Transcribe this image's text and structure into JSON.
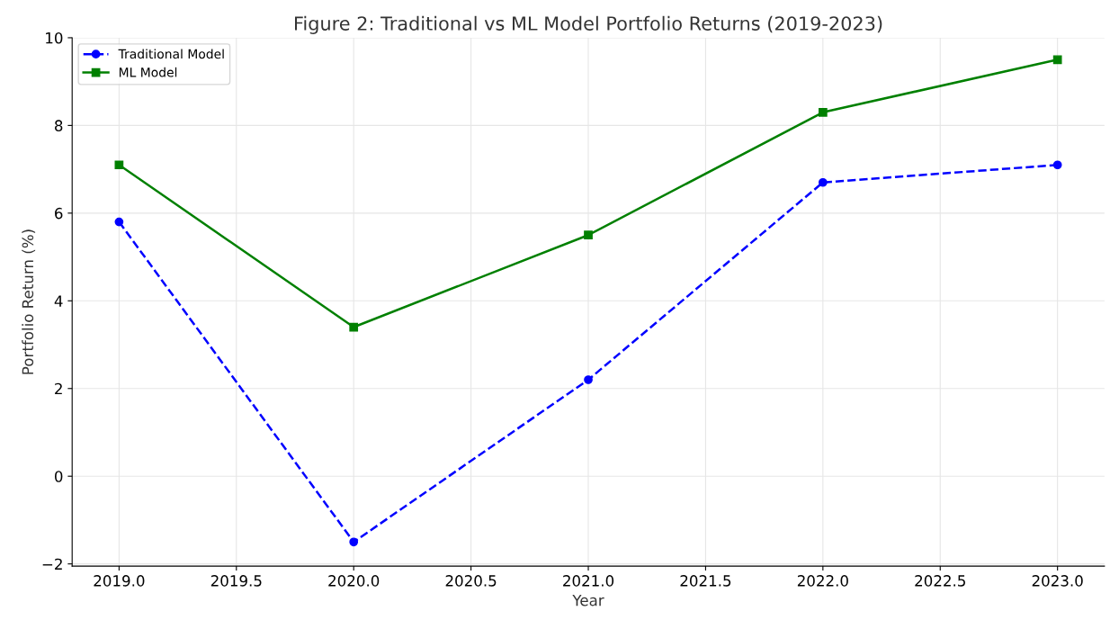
{
  "chart_data": {
    "type": "line",
    "title": "Figure 2: Traditional vs ML Model Portfolio Returns (2019-2023)",
    "xlabel": "Year",
    "ylabel": "Portfolio Return (%)",
    "x": [
      2019,
      2020,
      2021,
      2022,
      2023
    ],
    "series": [
      {
        "name": "Traditional Model",
        "color": "#0000ff",
        "values": [
          5.8,
          -1.5,
          2.2,
          6.7,
          7.1
        ],
        "marker": "circle",
        "line_style": "dashed"
      },
      {
        "name": "ML Model",
        "color": "#008000",
        "values": [
          7.1,
          3.4,
          5.5,
          8.3,
          9.5
        ],
        "marker": "square",
        "line_style": "solid"
      }
    ],
    "xlim": [
      2018.8,
      2023.2
    ],
    "xticks": [
      {
        "value": 2019,
        "label": "2019.0"
      },
      {
        "value": 2019.5,
        "label": "2019.5"
      },
      {
        "value": 2020,
        "label": "2020.0"
      },
      {
        "value": 2020.5,
        "label": "2020.5"
      },
      {
        "value": 2021,
        "label": "2021.0"
      },
      {
        "value": 2021.5,
        "label": "2021.5"
      },
      {
        "value": 2022,
        "label": "2022.0"
      },
      {
        "value": 2022.5,
        "label": "2022.5"
      },
      {
        "value": 2023,
        "label": "2023.0"
      }
    ],
    "ylim": [
      -2.05,
      10
    ],
    "yticks": [
      {
        "value": -2,
        "label": "−2"
      },
      0,
      2,
      4,
      6,
      8,
      10
    ],
    "grid": true,
    "legend": "top left"
  }
}
